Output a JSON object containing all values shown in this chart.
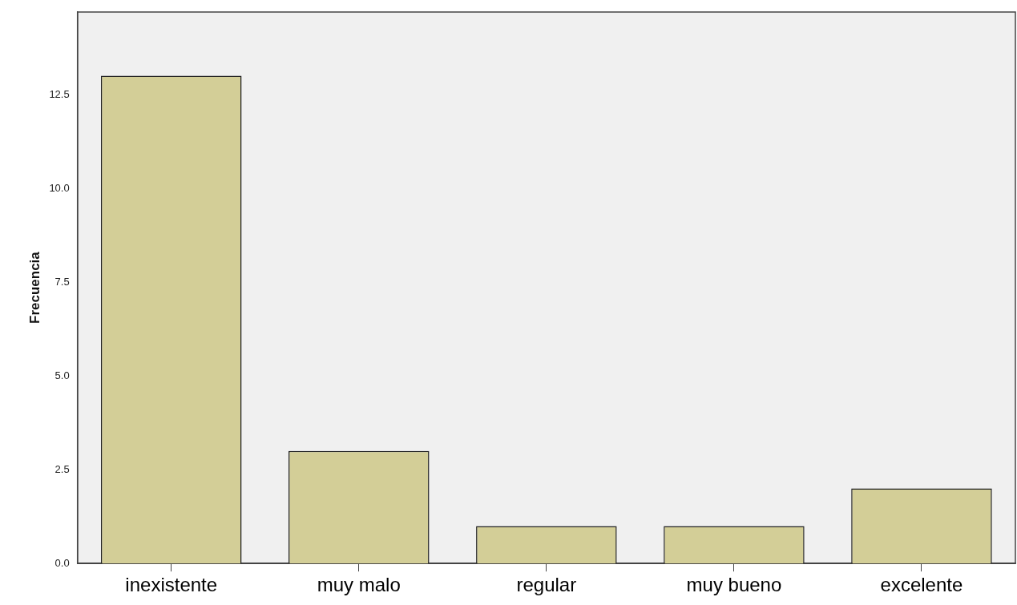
{
  "chart_data": {
    "type": "bar",
    "ylabel": "Frecuencia",
    "categories": [
      "inexistente",
      "muy malo",
      "regular",
      "muy bueno",
      "excelente"
    ],
    "values": [
      13,
      3,
      1,
      1,
      2
    ],
    "color": "#d3ce97",
    "ylim": [
      0,
      14.7
    ],
    "yticks": [
      {
        "value": 0,
        "label": "0.0"
      },
      {
        "value": 2.5,
        "label": "2.5"
      },
      {
        "value": 5,
        "label": "5.0"
      },
      {
        "value": 7.5,
        "label": "7.5"
      },
      {
        "value": 10,
        "label": "10.0"
      },
      {
        "value": 12.5,
        "label": "12.5"
      }
    ],
    "grid": false,
    "legend": false
  }
}
